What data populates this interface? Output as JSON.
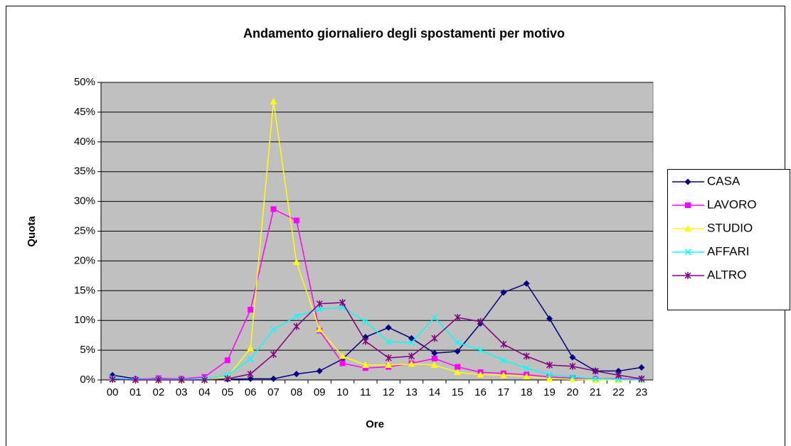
{
  "chart_data": {
    "type": "line",
    "title": "Andamento giornaliero degli spostamenti per motivo",
    "x_label": "Ore",
    "y_label": "Quota",
    "categories": [
      "00",
      "01",
      "02",
      "03",
      "04",
      "05",
      "06",
      "07",
      "08",
      "09",
      "10",
      "11",
      "12",
      "13",
      "14",
      "15",
      "16",
      "17",
      "18",
      "19",
      "20",
      "21",
      "22",
      "23"
    ],
    "ylim": [
      0,
      50
    ],
    "yticks": [
      {
        "value": 0,
        "label": "0%"
      },
      {
        "value": 5,
        "label": "5%"
      },
      {
        "value": 10,
        "label": "10%"
      },
      {
        "value": 15,
        "label": "15%"
      },
      {
        "value": 20,
        "label": "20%"
      },
      {
        "value": 25,
        "label": "25%"
      },
      {
        "value": 30,
        "label": "30%"
      },
      {
        "value": 35,
        "label": "35%"
      },
      {
        "value": 40,
        "label": "40%"
      },
      {
        "value": 45,
        "label": "45%"
      },
      {
        "value": 50,
        "label": "50%"
      }
    ],
    "grid": true,
    "legend": "right",
    "plot_background": "#c0c0c0",
    "series": [
      {
        "name": "CASA",
        "color": "#000080",
        "marker": "diamond",
        "values": [
          0.8,
          0.2,
          0.1,
          0.1,
          0.1,
          0.1,
          0.2,
          0.2,
          1.0,
          1.5,
          3.5,
          7.2,
          8.8,
          7.0,
          4.5,
          4.8,
          9.5,
          14.7,
          16.2,
          10.3,
          3.8,
          1.5,
          1.5,
          2.1
        ]
      },
      {
        "name": "LAVORO",
        "color": "#ff00ff",
        "marker": "square",
        "values": [
          0.2,
          0.1,
          0.3,
          0.2,
          0.5,
          3.3,
          11.8,
          28.7,
          26.8,
          8.3,
          2.8,
          2.0,
          2.2,
          2.8,
          3.6,
          2.2,
          1.3,
          1.1,
          0.9,
          0.5,
          0.3,
          0.2,
          0.2,
          0.1
        ]
      },
      {
        "name": "STUDIO",
        "color": "#ffff00",
        "marker": "triangle",
        "values": [
          0.1,
          0,
          0,
          0,
          0,
          0.5,
          5.3,
          46.8,
          19.8,
          8.5,
          4.0,
          2.5,
          2.5,
          2.7,
          2.5,
          1.3,
          0.9,
          0.8,
          0.6,
          0.2,
          0.1,
          0,
          0,
          0
        ]
      },
      {
        "name": "AFFARI",
        "color": "#00ffff",
        "marker": "x",
        "values": [
          0.3,
          0.1,
          0.1,
          0.1,
          0.2,
          0.8,
          3.5,
          8.5,
          10.7,
          11.9,
          12.2,
          9.8,
          6.4,
          6.3,
          10.5,
          6.3,
          5.0,
          3.3,
          2.0,
          0.9,
          0.5,
          0.2,
          0.1,
          0
        ]
      },
      {
        "name": "ALTRO",
        "color": "#800080",
        "marker": "star",
        "values": [
          0.1,
          0,
          0,
          0,
          0,
          0.2,
          1.0,
          4.3,
          9.0,
          12.8,
          13.0,
          6.5,
          3.7,
          4.0,
          7.0,
          10.5,
          9.8,
          6.0,
          4.0,
          2.5,
          2.3,
          1.5,
          0.8,
          0.2
        ]
      }
    ]
  }
}
